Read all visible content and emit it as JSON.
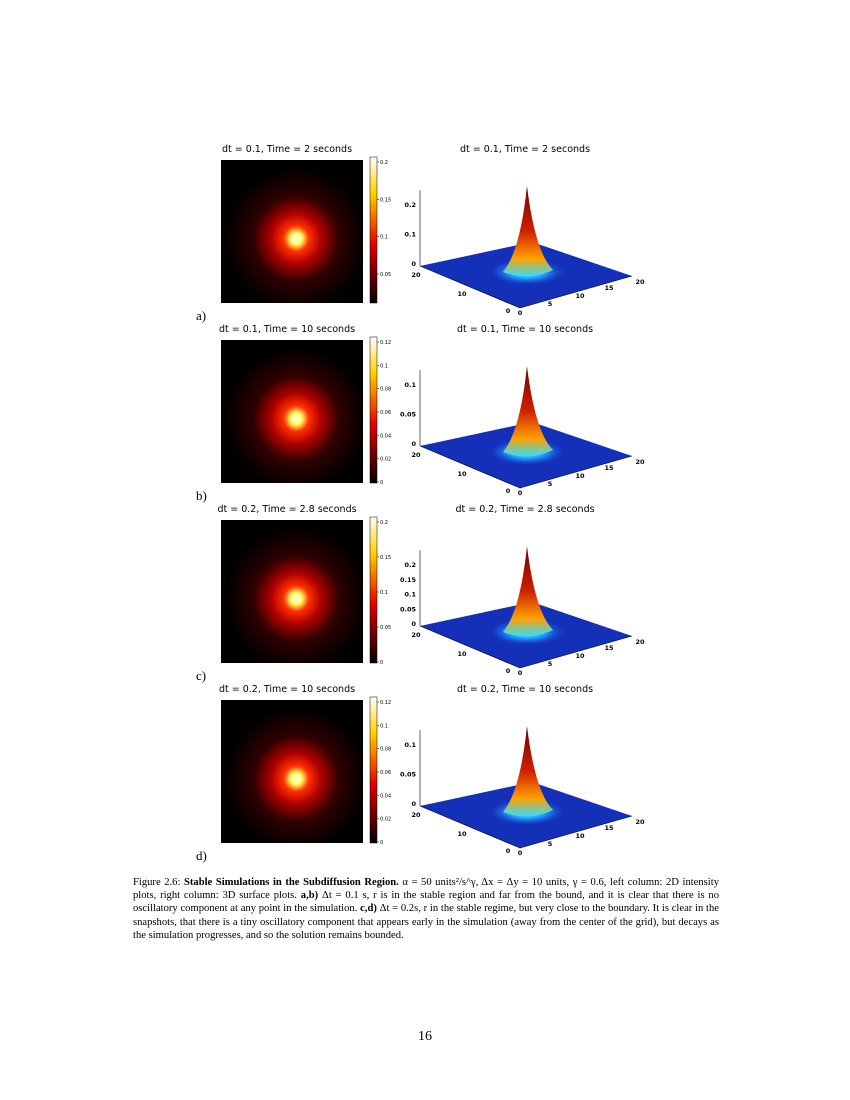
{
  "panels": [
    {
      "label": "a)",
      "left_title": "dt = 0.1, Time = 2 seconds",
      "right_title": "dt = 0.1, Time = 2 seconds",
      "colorbar_ticks": [
        "0.2",
        "0.15",
        "0.1",
        "0.05"
      ],
      "z_ticks": [
        "0.2",
        "0.1",
        "0"
      ]
    },
    {
      "label": "b)",
      "left_title": "dt = 0.1, Time = 10 seconds",
      "right_title": "dt = 0.1, Time = 10 seconds",
      "colorbar_ticks": [
        "0.12",
        "0.1",
        "0.08",
        "0.06",
        "0.04",
        "0.02",
        "0"
      ],
      "z_ticks": [
        "0.1",
        "0.05",
        "0"
      ]
    },
    {
      "label": "c)",
      "left_title": "dt = 0.2, Time = 2.8 seconds",
      "right_title": "dt = 0.2, Time = 2.8 seconds",
      "colorbar_ticks": [
        "0.2",
        "0.15",
        "0.1",
        "0.05",
        "0"
      ],
      "z_ticks": [
        "0.2",
        "0.15",
        "0.1",
        "0.05",
        "0"
      ]
    },
    {
      "label": "d)",
      "left_title": "dt = 0.2, Time = 10 seconds",
      "right_title": "dt = 0.2, Time = 10 seconds",
      "colorbar_ticks": [
        "0.12",
        "0.1",
        "0.08",
        "0.06",
        "0.04",
        "0.02",
        "0"
      ],
      "z_ticks": [
        "0.1",
        "0.05",
        "0"
      ]
    }
  ],
  "base_ticks_left": [
    "20",
    "10",
    "0"
  ],
  "base_ticks_right": [
    "0",
    "5",
    "10",
    "15",
    "20"
  ],
  "caption": {
    "label": "Figure 2.6: ",
    "title": "Stable Simulations in the Subdiffusion Region.",
    "params": " α = 50 units²/s^γ, Δx = Δy = 10 units, γ = 0.6, left column: 2D intensity plots, right column: 3D surface plots. ",
    "ab_label": "a,b)",
    "ab_text": " Δt = 0.1 s, r is in the stable region and far from the bound, and it is clear that there is no oscillatory component at any point in the simulation. ",
    "cd_label": "c,d)",
    "cd_text": " Δt = 0.2s, r in the stable regime, but very close to the boundary. It is clear in the snapshots, that there is a tiny oscillatory component that appears early in the simulation (away from the center of the grid), but decays as the simulation progresses, and so the solution remains bounded."
  },
  "page_number": "16"
}
